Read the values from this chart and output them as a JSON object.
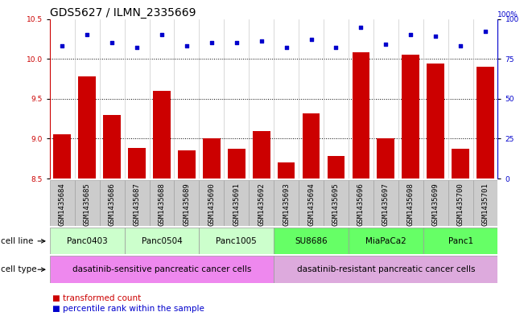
{
  "title": "GDS5627 / ILMN_2335669",
  "samples": [
    "GSM1435684",
    "GSM1435685",
    "GSM1435686",
    "GSM1435687",
    "GSM1435688",
    "GSM1435689",
    "GSM1435690",
    "GSM1435691",
    "GSM1435692",
    "GSM1435693",
    "GSM1435694",
    "GSM1435695",
    "GSM1435696",
    "GSM1435697",
    "GSM1435698",
    "GSM1435699",
    "GSM1435700",
    "GSM1435701"
  ],
  "bar_values": [
    9.05,
    9.78,
    9.3,
    8.88,
    9.6,
    8.85,
    9.0,
    8.87,
    9.1,
    8.7,
    9.32,
    8.78,
    10.08,
    9.0,
    10.05,
    9.94,
    8.87,
    9.9
  ],
  "dot_values": [
    83,
    90,
    85,
    82,
    90,
    83,
    85,
    85,
    86,
    82,
    87,
    82,
    95,
    84,
    90,
    89,
    83,
    92
  ],
  "ylim": [
    8.5,
    10.5
  ],
  "yticks_left": [
    8.5,
    9.0,
    9.5,
    10.0,
    10.5
  ],
  "yticks_right": [
    0,
    25,
    50,
    75,
    100
  ],
  "bar_color": "#cc0000",
  "dot_color": "#0000cc",
  "xtick_bg_color": "#cccccc",
  "cell_line_groups": [
    {
      "label": "Panc0403",
      "start": 0,
      "end": 2,
      "color": "#ccffcc"
    },
    {
      "label": "Panc0504",
      "start": 3,
      "end": 5,
      "color": "#ccffcc"
    },
    {
      "label": "Panc1005",
      "start": 6,
      "end": 8,
      "color": "#ccffcc"
    },
    {
      "label": "SU8686",
      "start": 9,
      "end": 11,
      "color": "#66ff66"
    },
    {
      "label": "MiaPaCa2",
      "start": 12,
      "end": 14,
      "color": "#66ff66"
    },
    {
      "label": "Panc1",
      "start": 15,
      "end": 17,
      "color": "#66ff66"
    }
  ],
  "cell_type_groups": [
    {
      "label": "dasatinib-sensitive pancreatic cancer cells",
      "start": 0,
      "end": 8,
      "color": "#ee88ee"
    },
    {
      "label": "dasatinib-resistant pancreatic cancer cells",
      "start": 9,
      "end": 17,
      "color": "#ddaadd"
    }
  ],
  "legend_bar_label": "transformed count",
  "legend_dot_label": "percentile rank within the sample",
  "cell_line_label": "cell line",
  "cell_type_label": "cell type",
  "background_color": "#ffffff",
  "grid_color": "#000000",
  "title_fontsize": 10,
  "tick_fontsize": 6.5,
  "label_fontsize": 7.5,
  "annot_fontsize": 7.5
}
